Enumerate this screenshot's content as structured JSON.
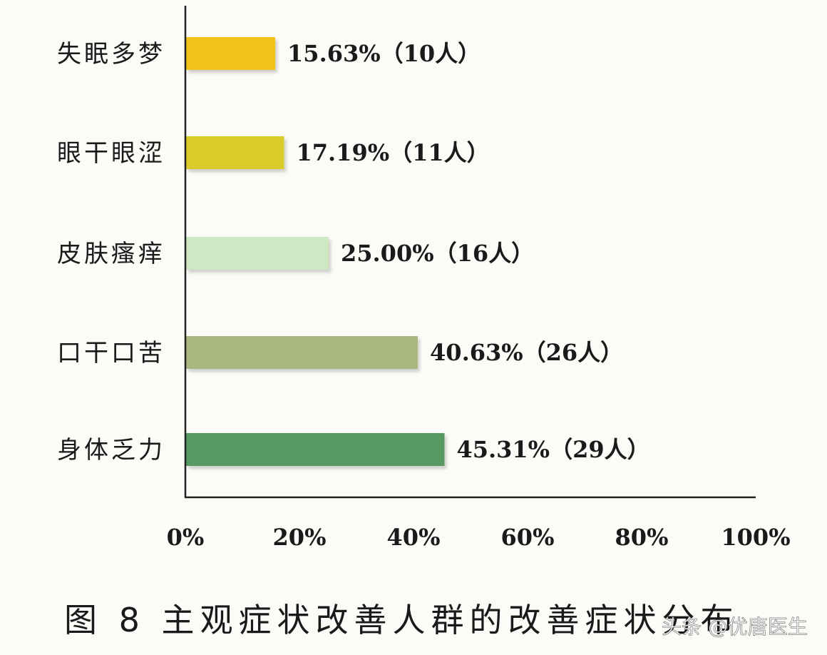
{
  "chart_data": {
    "type": "bar",
    "orientation": "horizontal",
    "categories": [
      "失眠多梦",
      "眼干眼涩",
      "皮肤瘙痒",
      "口干口苦",
      "身体乏力"
    ],
    "values": [
      15.63,
      17.19,
      25.0,
      40.63,
      45.31
    ],
    "data_labels": [
      "15.63%（10人）",
      "17.19%（11人）",
      "25.00%（16人）",
      "40.63%（26人）",
      "45.31%（29人）"
    ],
    "bar_colors": [
      "#f2c21c",
      "#d9cc2a",
      "#cde8c2",
      "#a9b880",
      "#579a62"
    ],
    "xlim": [
      0,
      100
    ],
    "x_ticks": [
      "0%",
      "20%",
      "40%",
      "60%",
      "80%",
      "100%"
    ],
    "grid": false,
    "title": "",
    "xlabel": "",
    "ylabel": ""
  },
  "caption": "图 8   主观症状改善人群的改善症状分布",
  "watermark": "头条 @优唐医生"
}
